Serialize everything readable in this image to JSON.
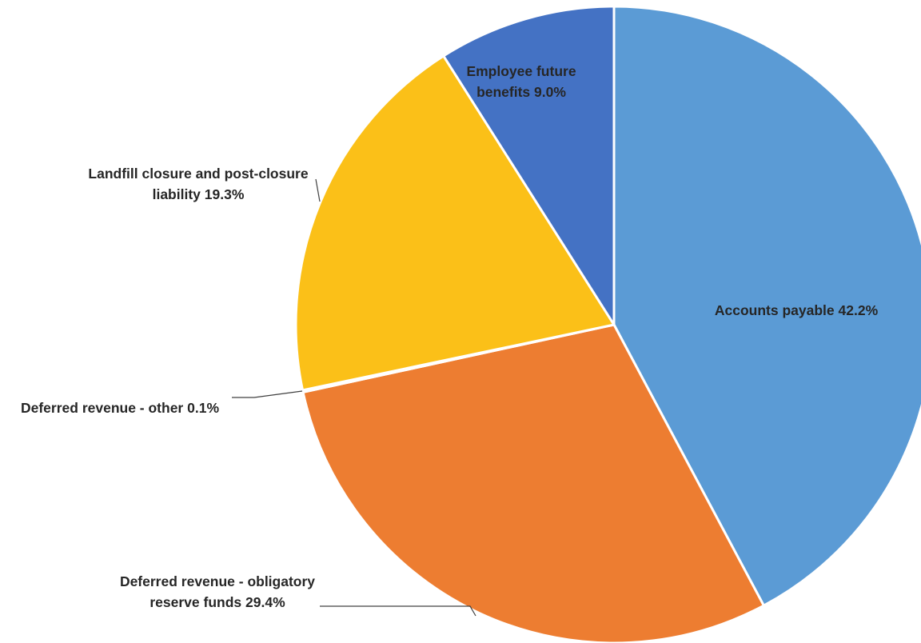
{
  "chart_data": {
    "type": "pie",
    "categories": [
      "Accounts payable",
      "Deferred revenue - obligatory reserve funds",
      "Deferred revenue - other",
      "Landfill closure and post-closure liability",
      "Employee future benefits"
    ],
    "values": [
      42.2,
      29.4,
      0.1,
      19.3,
      9.0
    ],
    "value_labels": [
      "42.2%",
      "29.4%",
      "0.1%",
      "19.3%",
      "9.0%"
    ],
    "colors": [
      "#5b9bd5",
      "#ed7d31",
      "#a5a5a5",
      "#fbc018",
      "#4472c4"
    ]
  }
}
